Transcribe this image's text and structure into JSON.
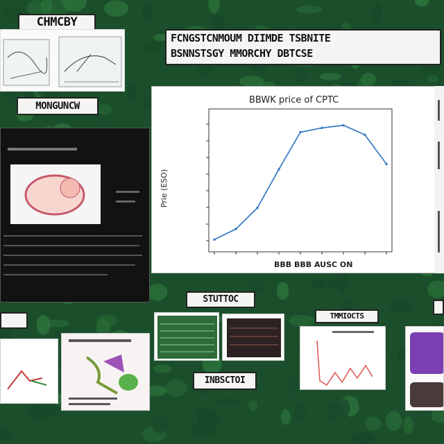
{
  "labels": {
    "top_left": "CHMCBY",
    "left_mid": "MONGUNCW",
    "banner_line1": "FCNGSTCNMOUM DIIMDE TSBNITE",
    "banner_line2": "BSNNSTSGY MMORCHY DBTCSE",
    "bottom_center_a": "STUTTOC",
    "bottom_center_b": "INBSCTOI",
    "right_bottom_card": "TMMIOCTS"
  },
  "chart_panel": {
    "title": "BBWK price of CPTC",
    "xlabel": "BBB BBB AUSC ON",
    "ylabel": "Prie (ESO)"
  },
  "chart_data": {
    "type": "line",
    "title": "BBWK price of CPTC",
    "xlabel": "BBB BBB AUSC ON",
    "ylabel": "Prie (ESO)",
    "x": [
      0,
      1,
      2,
      3,
      4,
      5,
      6,
      7,
      8
    ],
    "values": [
      6.2,
      18.5,
      43,
      88,
      131,
      136,
      139,
      128,
      94
    ],
    "ylim": [
      0,
      150
    ],
    "grid": false,
    "color": "#3f7fc8"
  },
  "colors": {
    "background": "#1f5a30",
    "line": "#3f7fc8",
    "panel": "#ffffff"
  }
}
